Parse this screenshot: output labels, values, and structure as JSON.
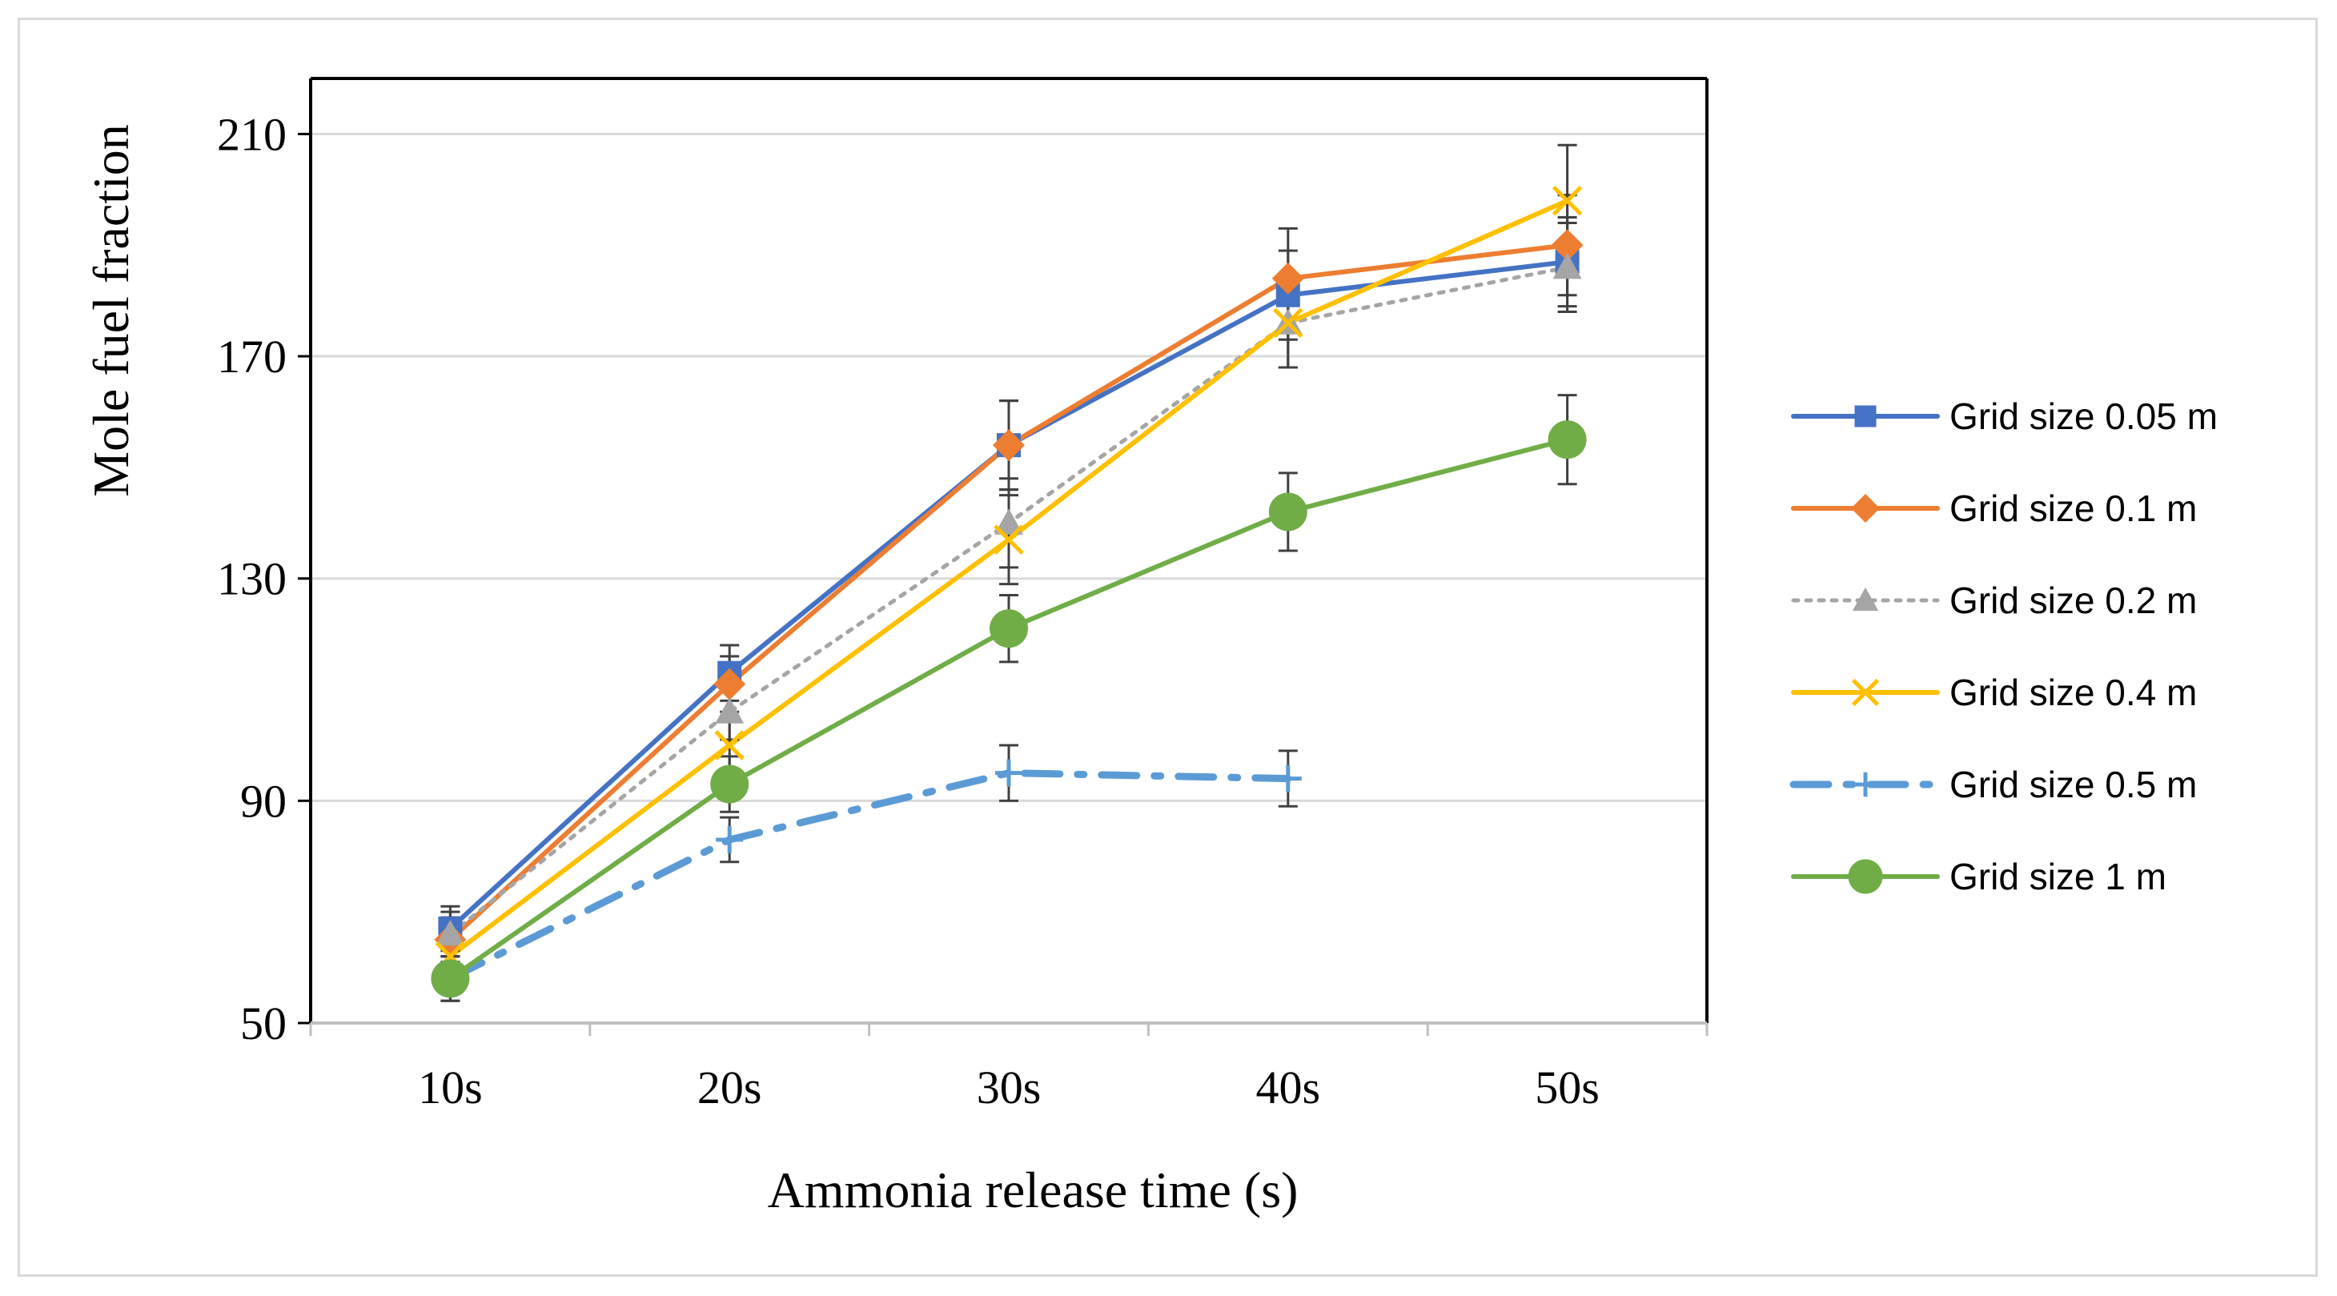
{
  "chart_data": {
    "type": "line",
    "title": "",
    "xlabel": "Ammonia release time (s)",
    "ylabel": "Mole fuel fraction",
    "categories": [
      "10s",
      "20s",
      "30s",
      "40s",
      "50s"
    ],
    "ylim": [
      50,
      220
    ],
    "yticks": [
      50,
      90,
      130,
      170,
      210
    ],
    "grid": true,
    "legend_position": "right",
    "series": [
      {
        "name": "Grid size 0.05 m",
        "color": "#4472c4",
        "marker": "square",
        "dash": "solid",
        "values": [
          67,
          113,
          154,
          181,
          187
        ],
        "errors": [
          4,
          5,
          8,
          8,
          8
        ]
      },
      {
        "name": "Grid size 0.1 m",
        "color": "#ed7d31",
        "marker": "diamond",
        "dash": "solid",
        "values": [
          65,
          111,
          154,
          184,
          190
        ],
        "errors": [
          4,
          5,
          8,
          9,
          9
        ]
      },
      {
        "name": "Grid size 0.2 m",
        "color": "#a5a5a5",
        "marker": "triangle",
        "dash": "dot",
        "values": [
          66,
          106,
          140,
          176,
          186
        ],
        "errors": [
          4,
          5,
          8,
          8,
          8
        ]
      },
      {
        "name": "Grid size 0.4 m",
        "color": "#ffc000",
        "marker": "x",
        "dash": "solid",
        "values": [
          62,
          100,
          137,
          176,
          198
        ],
        "errors": [
          4,
          5,
          8,
          8,
          10
        ]
      },
      {
        "name": "Grid size 0.5 m",
        "color": "#5b9bd5",
        "marker": "plus",
        "dash": "dashdot",
        "values": [
          58,
          83,
          95,
          94,
          null
        ],
        "errors": [
          4,
          4,
          5,
          5,
          null
        ]
      },
      {
        "name": "Grid size 1 m",
        "color": "#70ad47",
        "marker": "circle",
        "dash": "solid",
        "values": [
          58,
          93,
          121,
          142,
          155
        ],
        "errors": [
          4,
          5,
          6,
          7,
          8
        ]
      }
    ],
    "errorbar_color": "#404040"
  }
}
